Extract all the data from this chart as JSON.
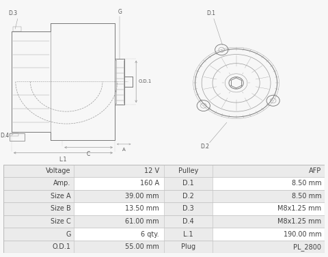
{
  "bg_color": "#f7f7f7",
  "table_bg_light": "#ebebeb",
  "table_bg_white": "#f7f7f7",
  "table_border": "#bbbbbb",
  "rows": [
    [
      "Voltage",
      "12 V",
      "Pulley",
      "AFP"
    ],
    [
      "Amp.",
      "160 A",
      "D.1",
      "8.50 mm"
    ],
    [
      "Size A",
      "39.00 mm",
      "D.2",
      "8.50 mm"
    ],
    [
      "Size B",
      "13.50 mm",
      "D.3",
      "M8x1.25 mm"
    ],
    [
      "Size C",
      "61.00 mm",
      "D.4",
      "M8x1.25 mm"
    ],
    [
      "G",
      "6 qty.",
      "L.1",
      "190.00 mm"
    ],
    [
      "O.D.1",
      "55.00 mm",
      "Plug",
      "PL_2800"
    ]
  ],
  "line_color": "#999999",
  "label_color": "#555555",
  "line_color_dark": "#777777"
}
